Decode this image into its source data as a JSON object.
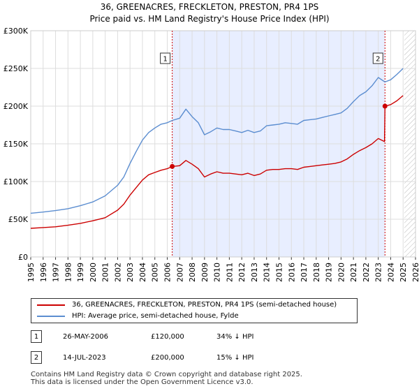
{
  "title_line1": "36, GREENACRES, FRECKLETON, PRESTON, PR4 1PS",
  "title_line2": "Price paid vs. HM Land Registry's House Price Index (HPI)",
  "chart_data": {
    "type": "line",
    "title": "36, GREENACRES, FRECKLETON, PRESTON, PR4 1PS — Price paid vs. HM Land Registry's House Price Index (HPI)",
    "xlim": [
      1995,
      2026
    ],
    "ylim": [
      0,
      300000
    ],
    "x_ticks": [
      1995,
      1996,
      1997,
      1998,
      1999,
      2000,
      2001,
      2002,
      2003,
      2004,
      2005,
      2006,
      2007,
      2008,
      2009,
      2010,
      2011,
      2012,
      2013,
      2014,
      2015,
      2016,
      2017,
      2018,
      2019,
      2020,
      2021,
      2022,
      2023,
      2024,
      2025,
      2026
    ],
    "y_ticks": [
      0,
      50000,
      100000,
      150000,
      200000,
      250000,
      300000
    ],
    "y_tick_labels": [
      "£0",
      "£50K",
      "£100K",
      "£150K",
      "£200K",
      "£250K",
      "£300K"
    ],
    "shaded_region": [
      2006.4,
      2023.54
    ],
    "forecast_from": 2025.1,
    "series": [
      {
        "name": "HPI: Average price, semi-detached house, Fylde",
        "color": "#5b8dd0",
        "x": [
          1995.0,
          1996.0,
          1997.0,
          1998.0,
          1999.0,
          2000.0,
          2001.0,
          2002.0,
          2002.5,
          2003.0,
          2003.5,
          2004.0,
          2004.5,
          2005.0,
          2005.5,
          2006.0,
          2006.4,
          2007.0,
          2007.5,
          2008.0,
          2008.5,
          2009.0,
          2009.5,
          2010.0,
          2010.5,
          2011.0,
          2011.5,
          2012.0,
          2012.5,
          2013.0,
          2013.5,
          2014.0,
          2014.5,
          2015.0,
          2015.5,
          2016.0,
          2016.5,
          2017.0,
          2017.5,
          2018.0,
          2018.5,
          2019.0,
          2019.5,
          2020.0,
          2020.5,
          2021.0,
          2021.5,
          2022.0,
          2022.5,
          2023.0,
          2023.54,
          2024.0,
          2024.5,
          2025.0
        ],
        "values": [
          58000,
          59500,
          61500,
          64000,
          68000,
          73000,
          81000,
          95000,
          106000,
          124000,
          140000,
          155000,
          165000,
          171000,
          176000,
          178000,
          181000,
          184000,
          196000,
          186000,
          178000,
          162000,
          166000,
          171000,
          169000,
          169000,
          167000,
          165000,
          168000,
          165000,
          167000,
          174000,
          175000,
          176000,
          178000,
          177000,
          176000,
          181000,
          182000,
          183000,
          185000,
          187000,
          189000,
          191000,
          197000,
          206000,
          214000,
          219000,
          227000,
          238000,
          232000,
          235000,
          242000,
          250000
        ]
      },
      {
        "name": "36, GREENACRES, FRECKLETON, PRESTON, PR4 1PS (semi-detached house)",
        "color": "#cc0000",
        "x": [
          1995.0,
          1996.0,
          1997.0,
          1998.0,
          1999.0,
          2000.0,
          2001.0,
          2002.0,
          2002.5,
          2003.0,
          2003.5,
          2004.0,
          2004.5,
          2005.0,
          2005.5,
          2006.0,
          2006.4,
          2007.0,
          2007.5,
          2008.0,
          2008.5,
          2009.0,
          2009.5,
          2010.0,
          2010.5,
          2011.0,
          2011.5,
          2012.0,
          2012.5,
          2013.0,
          2013.5,
          2014.0,
          2014.5,
          2015.0,
          2015.5,
          2016.0,
          2016.5,
          2017.0,
          2017.5,
          2018.0,
          2018.5,
          2019.0,
          2019.5,
          2020.0,
          2020.5,
          2021.0,
          2021.5,
          2022.0,
          2022.5,
          2023.0,
          2023.5,
          2023.54,
          2024.0,
          2024.5,
          2025.0
        ],
        "values": [
          38000,
          39000,
          40000,
          42000,
          44500,
          48000,
          52000,
          62000,
          70000,
          82000,
          92000,
          102000,
          109000,
          112000,
          115000,
          117000,
          120000,
          121000,
          128000,
          123000,
          117000,
          106000,
          110000,
          113000,
          111000,
          111000,
          110000,
          109000,
          111000,
          108000,
          110000,
          115000,
          116000,
          116000,
          117000,
          117000,
          116000,
          119000,
          120000,
          121000,
          122000,
          123000,
          124000,
          126000,
          130000,
          136000,
          141000,
          145000,
          150000,
          157000,
          153000,
          200000,
          202000,
          207000,
          214000
        ]
      }
    ],
    "annotations": [
      {
        "label": "1",
        "x": 2006.4,
        "y": 120000
      },
      {
        "label": "2",
        "x": 2023.54,
        "y": 200000
      }
    ]
  },
  "legend": {
    "property_label": "36, GREENACRES, FRECKLETON, PRESTON, PR4 1PS (semi-detached house)",
    "hpi_label": "HPI: Average price, semi-detached house, Fylde"
  },
  "sales": [
    {
      "num": "1",
      "date": "26-MAY-2006",
      "price": "£120,000",
      "hpi": "34% ↓ HPI"
    },
    {
      "num": "2",
      "date": "14-JUL-2023",
      "price": "£200,000",
      "hpi": "15% ↓ HPI"
    }
  ],
  "footer": {
    "line1": "Contains HM Land Registry data © Crown copyright and database right 2025.",
    "line2": "This data is licensed under the Open Government Licence v3.0."
  },
  "colors": {
    "property": "#cc0000",
    "hpi": "#5b8dd0",
    "shade": "#e8eeff",
    "grid": "#dddddd",
    "marker_line": "#cc0000"
  }
}
